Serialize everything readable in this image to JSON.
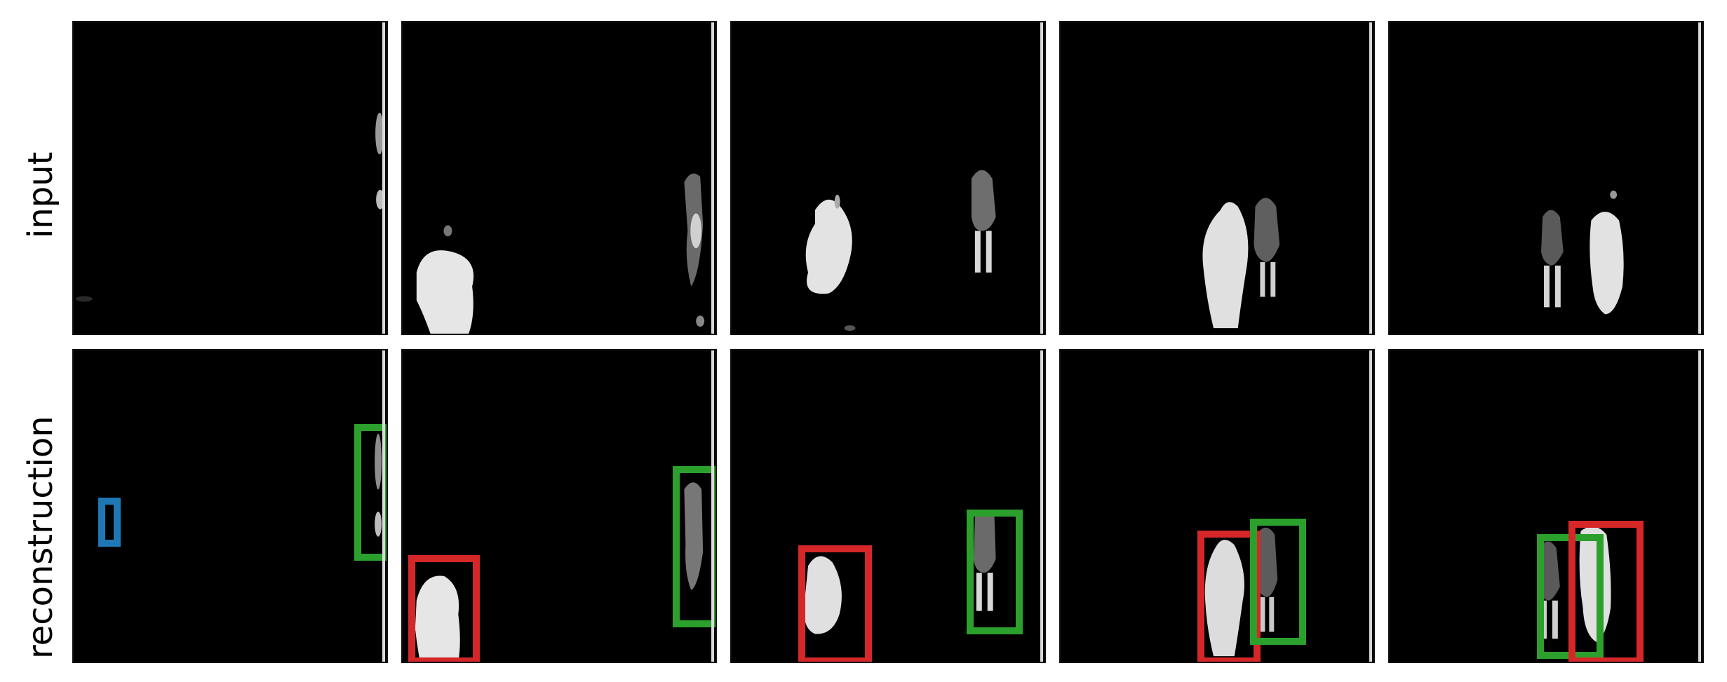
{
  "row_labels": {
    "input": "input",
    "reconstruction": "reconstruction"
  },
  "colors": {
    "background": "#000000",
    "box_blue": "#1f77b4",
    "box_green": "#2ca02c",
    "box_red": "#d62728"
  },
  "rows": [
    {
      "name": "input",
      "frames": [
        {
          "frame": 1,
          "objects": []
        },
        {
          "frame": 2,
          "objects": []
        },
        {
          "frame": 3,
          "objects": []
        },
        {
          "frame": 4,
          "objects": []
        },
        {
          "frame": 5,
          "objects": []
        }
      ]
    },
    {
      "name": "reconstruction",
      "frames": [
        {
          "frame": 1,
          "boxes": [
            "blue",
            "green"
          ]
        },
        {
          "frame": 2,
          "boxes": [
            "red",
            "green"
          ]
        },
        {
          "frame": 3,
          "boxes": [
            "red",
            "green"
          ]
        },
        {
          "frame": 4,
          "boxes": [
            "red",
            "green"
          ]
        },
        {
          "frame": 5,
          "boxes": [
            "green",
            "red"
          ]
        }
      ]
    }
  ]
}
